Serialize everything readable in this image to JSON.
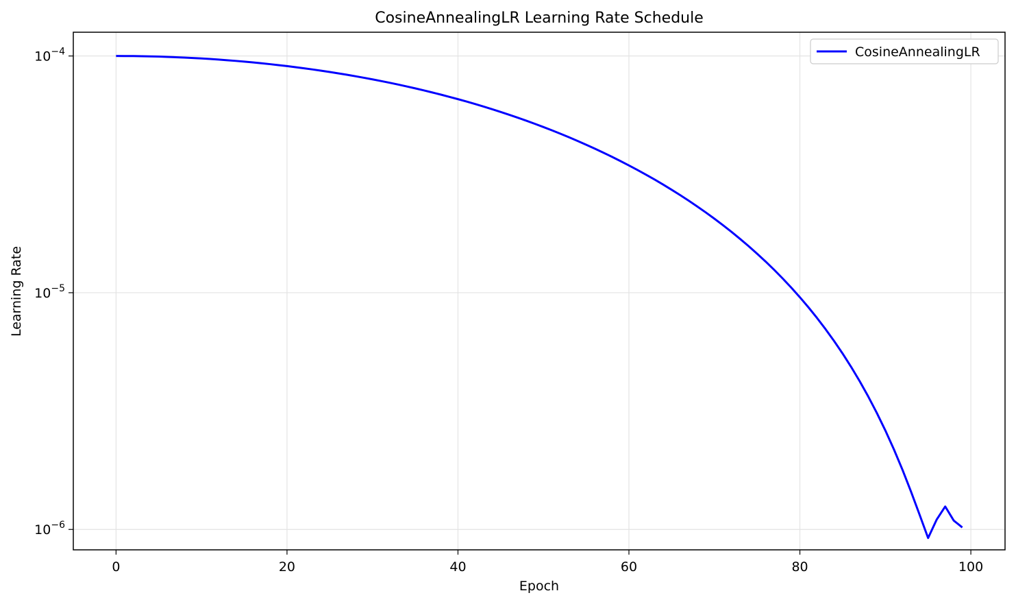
{
  "chart_data": {
    "type": "line",
    "title": "CosineAnnealingLR Learning Rate Schedule",
    "xlabel": "Epoch",
    "ylabel": "Learning Rate",
    "xlim": [
      -5,
      104
    ],
    "ylim": [
      8.2e-07,
      0.000126
    ],
    "yscale": "log",
    "grid": true,
    "legend_position": "top-right",
    "x_ticks": [
      0,
      20,
      40,
      60,
      80,
      100
    ],
    "y_ticks": [
      {
        "value": 0.0001,
        "base": "10",
        "exp": "−4"
      },
      {
        "value": 1e-05,
        "base": "10",
        "exp": "−5"
      },
      {
        "value": 1e-06,
        "base": "10",
        "exp": "−6"
      }
    ],
    "series": [
      {
        "name": "CosineAnnealingLR",
        "color": "#0000ff",
        "x": [
          0,
          1,
          2,
          3,
          4,
          5,
          6,
          7,
          8,
          9,
          10,
          11,
          12,
          13,
          14,
          15,
          16,
          17,
          18,
          19,
          20,
          21,
          22,
          23,
          24,
          25,
          26,
          27,
          28,
          29,
          30,
          31,
          32,
          33,
          34,
          35,
          36,
          37,
          38,
          39,
          40,
          41,
          42,
          43,
          44,
          45,
          46,
          47,
          48,
          49,
          50,
          51,
          52,
          53,
          54,
          55,
          56,
          57,
          58,
          59,
          60,
          61,
          62,
          63,
          64,
          65,
          66,
          67,
          68,
          69,
          70,
          71,
          72,
          73,
          74,
          75,
          76,
          77,
          78,
          79,
          80,
          81,
          82,
          83,
          84,
          85,
          86,
          87,
          88,
          89,
          90,
          91,
          92,
          93,
          94,
          95,
          96,
          97,
          98,
          99
        ],
        "y": [
          0.0001,
          9.998e-05,
          9.99e-05,
          9.978e-05,
          9.961e-05,
          9.94e-05,
          9.913e-05,
          9.882e-05,
          9.846e-05,
          9.806e-05,
          9.761e-05,
          9.711e-05,
          9.656e-05,
          9.597e-05,
          9.534e-05,
          9.466e-05,
          9.394e-05,
          9.318e-05,
          9.237e-05,
          9.152e-05,
          9.063e-05,
          8.97e-05,
          8.873e-05,
          8.772e-05,
          8.667e-05,
          8.559e-05,
          8.447e-05,
          8.332e-05,
          8.213e-05,
          8.091e-05,
          7.966e-05,
          7.838e-05,
          7.707e-05,
          7.573e-05,
          7.437e-05,
          7.298e-05,
          7.157e-05,
          7.013e-05,
          6.868e-05,
          6.72e-05,
          6.571e-05,
          6.42e-05,
          6.267e-05,
          6.113e-05,
          5.958e-05,
          5.802e-05,
          5.645e-05,
          5.487e-05,
          5.328e-05,
          5.169e-05,
          5.01e-05,
          4.851e-05,
          4.692e-05,
          4.533e-05,
          4.375e-05,
          4.218e-05,
          4.062e-05,
          3.907e-05,
          3.753e-05,
          3.6e-05,
          3.449e-05,
          3.3e-05,
          3.152e-05,
          3.007e-05,
          2.863e-05,
          2.722e-05,
          2.583e-05,
          2.447e-05,
          2.313e-05,
          2.182e-05,
          2.054e-05,
          1.929e-05,
          1.807e-05,
          1.688e-05,
          1.573e-05,
          1.461e-05,
          1.353e-05,
          1.248e-05,
          1.147e-05,
          1.05e-05,
          9.567e-06,
          8.676e-06,
          7.825e-06,
          7.017e-06,
          6.253e-06,
          5.532e-06,
          4.856e-06,
          4.226e-06,
          3.642e-06,
          3.106e-06,
          2.618e-06,
          2.178e-06,
          1.787e-06,
          1.445e-06,
          1.155e-06,
          9.2e-07,
          1.1e-06,
          1.25e-06,
          1.09e-06,
          1.02e-06
        ]
      }
    ]
  }
}
